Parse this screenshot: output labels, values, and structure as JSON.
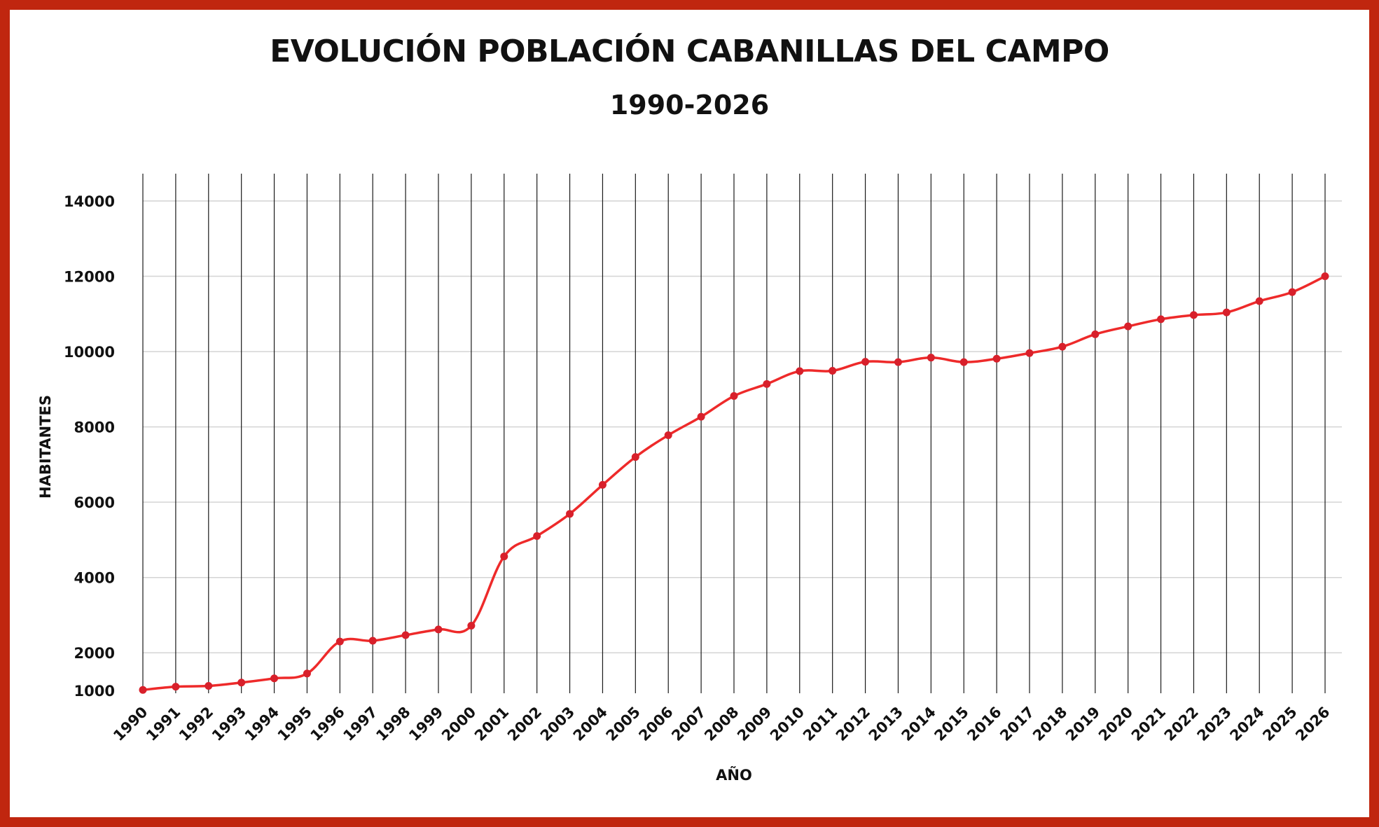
{
  "chart_data": {
    "type": "line",
    "title": "EVOLUCIÓN POBLACIÓN CABANILLAS DEL CAMPO",
    "subtitle": "1990-2026",
    "xlabel": "AÑO",
    "ylabel": "HABITANTES",
    "ylim": [
      1000,
      14700
    ],
    "yticks": [
      1000,
      2000,
      4000,
      6000,
      8000,
      10000,
      12000,
      14000
    ],
    "grid": "horizontal gridlines and vertical year lines",
    "line_color": "#ee2a2a",
    "categories": [
      "1990",
      "1991",
      "1992",
      "1993",
      "1994",
      "1995",
      "1996",
      "1997",
      "1998",
      "1999",
      "2000",
      "2001",
      "2002",
      "2003",
      "2004",
      "2005",
      "2006",
      "2007",
      "2008",
      "2009",
      "2010",
      "2011",
      "2012",
      "2013",
      "2014",
      "2015",
      "2016",
      "2017",
      "2018",
      "2019",
      "2020",
      "2021",
      "2022",
      "2023",
      "2024",
      "2025",
      "2026"
    ],
    "series": [
      {
        "name": "Habitantes",
        "values": [
          1015,
          1100,
          1120,
          1210,
          1320,
          1450,
          2300,
          2320,
          2470,
          2620,
          2720,
          4560,
          5100,
          5690,
          6460,
          7200,
          7780,
          8270,
          8820,
          9140,
          9480,
          9490,
          9730,
          9720,
          9840,
          9720,
          9810,
          9960,
          10130,
          10460,
          10670,
          10860,
          10970,
          11040,
          11340,
          11580,
          12000
        ]
      }
    ]
  }
}
